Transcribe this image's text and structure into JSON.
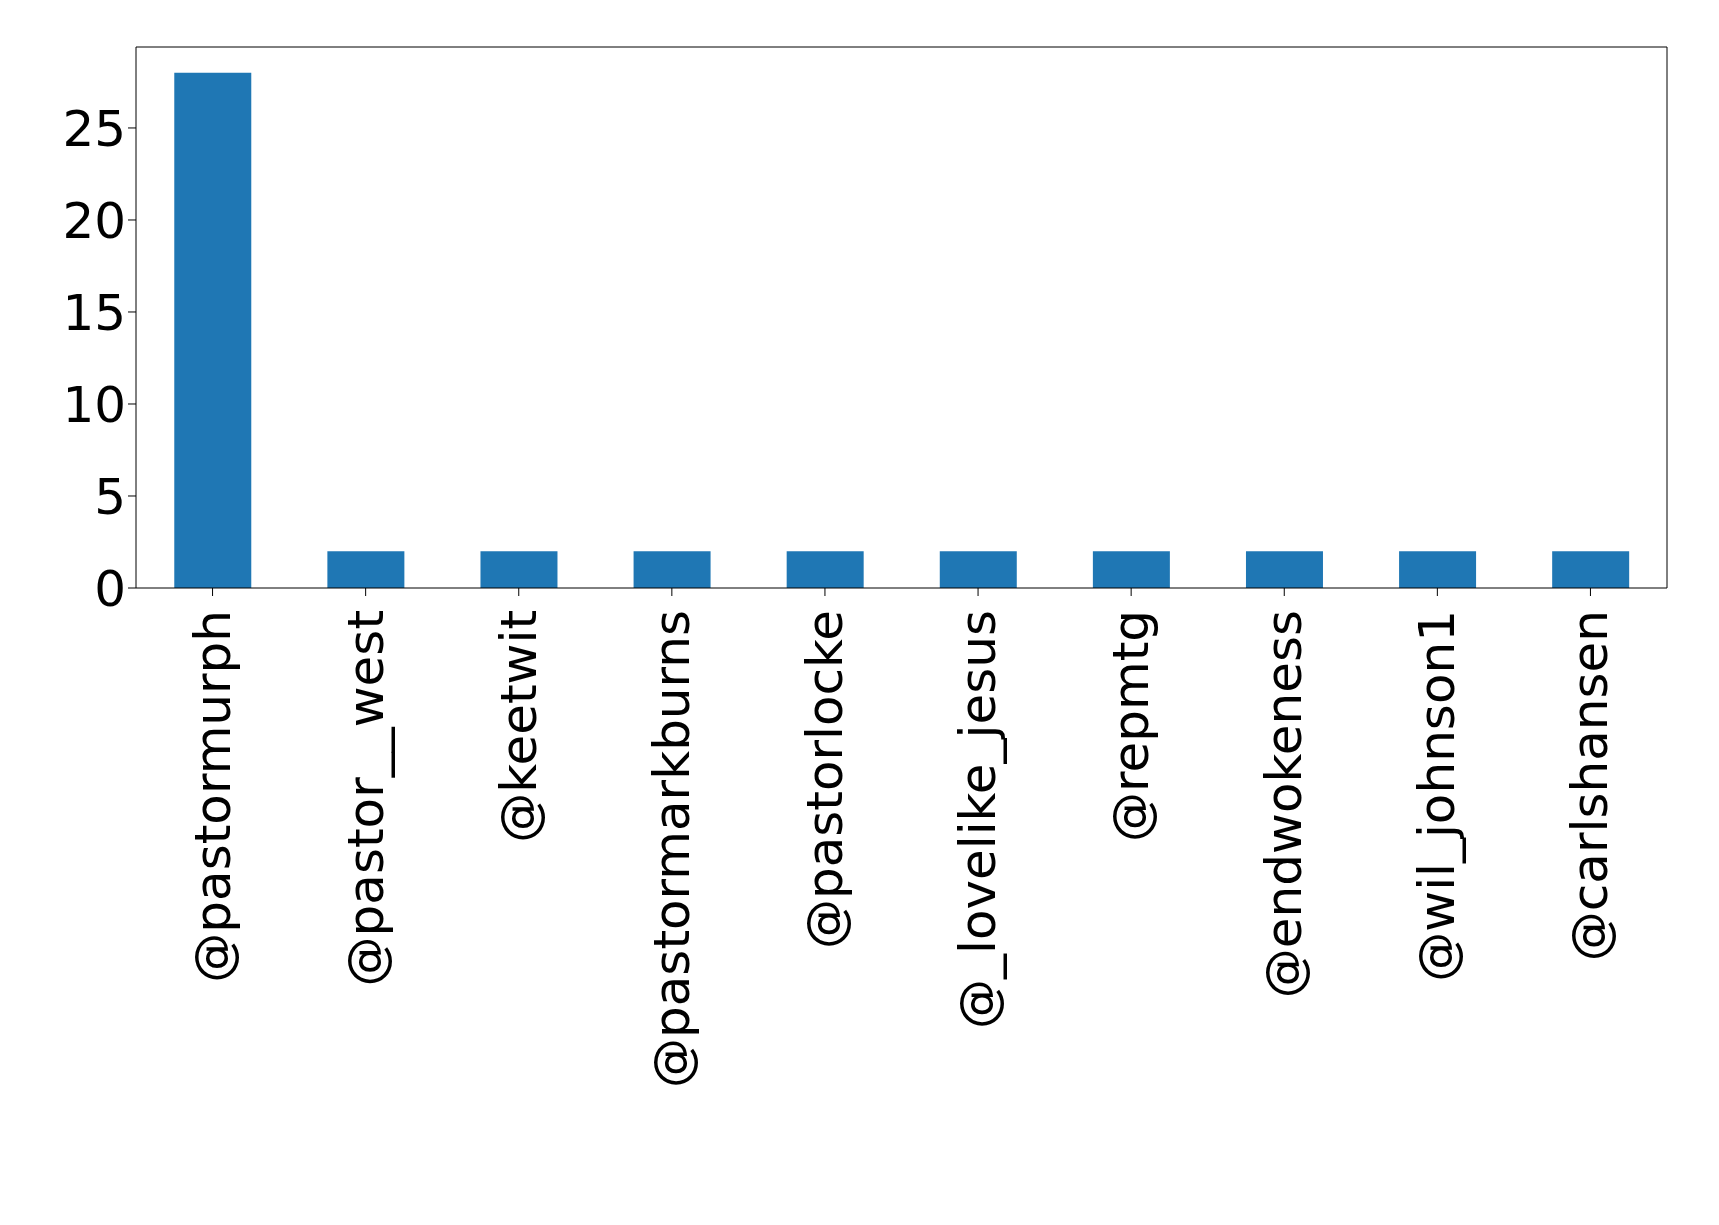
{
  "chart_data": {
    "type": "bar",
    "categories": [
      "@pastormurph",
      "@pastor__west",
      "@keetwit",
      "@pastormarkburns",
      "@pastorlocke",
      "@_lovelike_jesus",
      "@repmtg",
      "@endwokeness",
      "@wil_johnson1",
      "@carlshansen"
    ],
    "values": [
      28,
      2,
      2,
      2,
      2,
      2,
      2,
      2,
      2,
      2
    ],
    "color": "#1f77b4",
    "ylim": [
      0,
      29.4
    ],
    "yticks": [
      0,
      5,
      10,
      15,
      20,
      25
    ],
    "grid": false,
    "legend": false
  }
}
